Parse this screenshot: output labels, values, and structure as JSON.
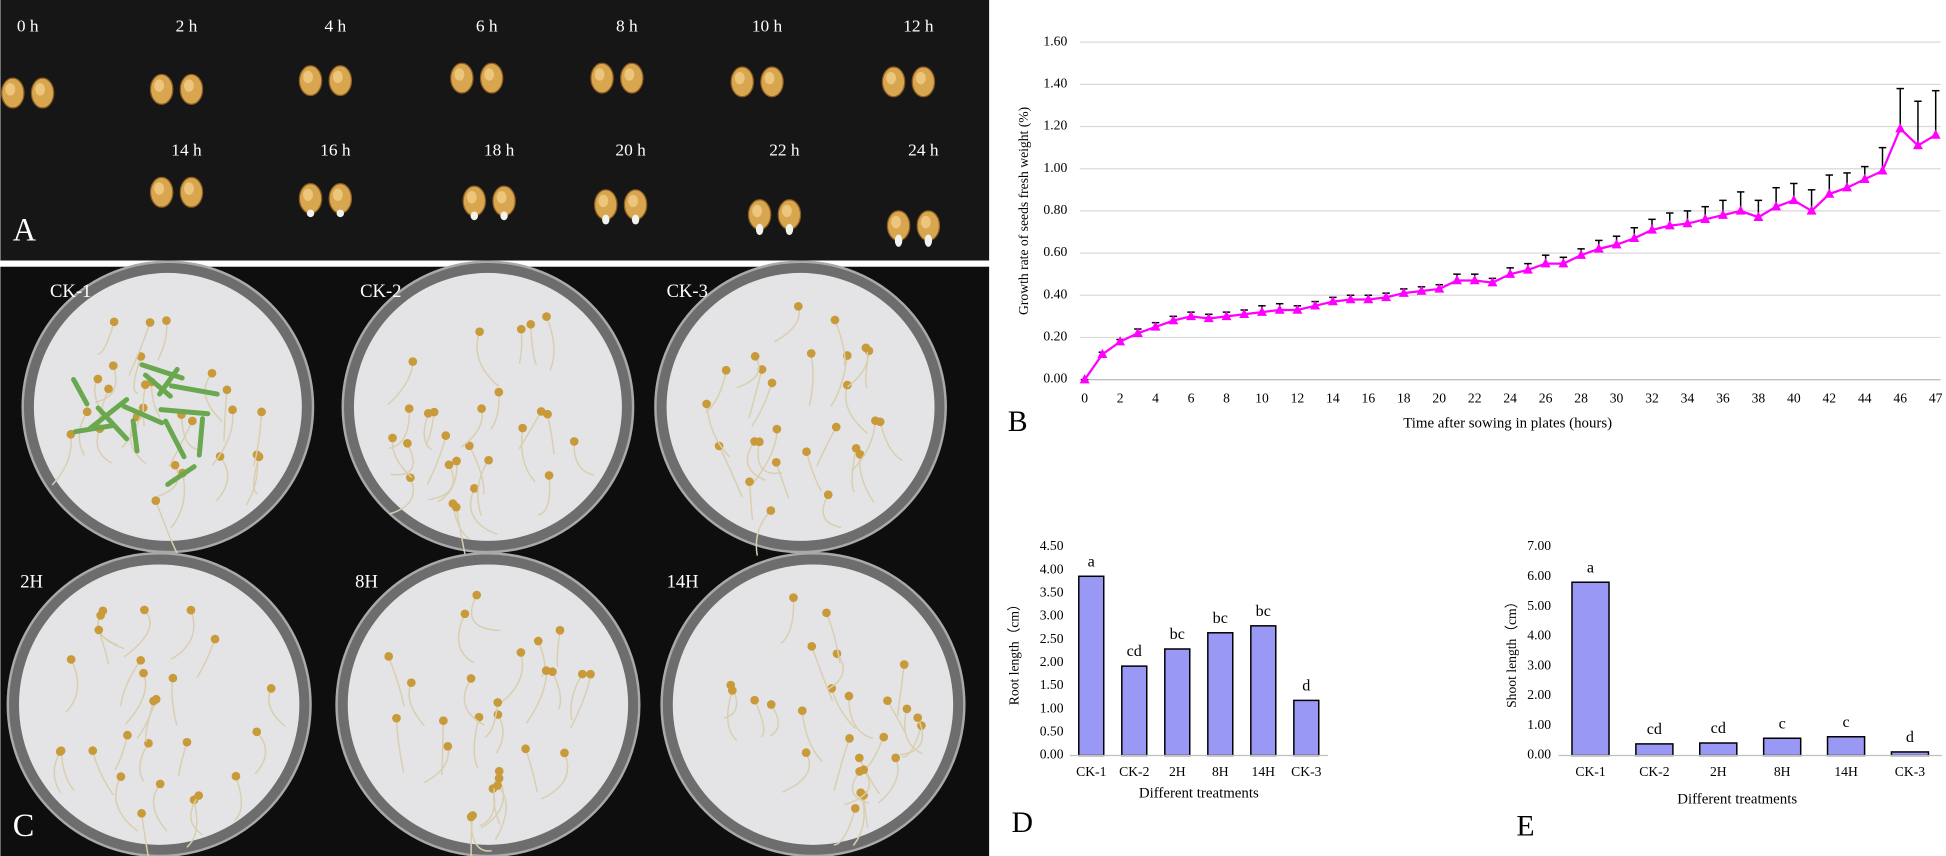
{
  "chart_data": [
    {
      "type": "line",
      "panel_label": "B",
      "x_label": "Time after sowing in plates (hours)",
      "y_label": "Growth rate of seeds fresh weight (%)",
      "categories": [
        "0",
        null,
        "2",
        null,
        "4",
        null,
        "6",
        null,
        "8",
        null,
        "10",
        null,
        "12",
        null,
        "14",
        null,
        "16",
        null,
        "18",
        null,
        "20",
        null,
        "22",
        null,
        "24",
        null,
        "26",
        null,
        "28",
        null,
        "30",
        null,
        "32",
        null,
        "34",
        null,
        "36",
        null,
        "38",
        null,
        "40",
        null,
        "42",
        null,
        "44",
        null,
        "46",
        null,
        "47"
      ],
      "values": [
        0.0,
        0.12,
        0.18,
        0.22,
        0.25,
        0.28,
        0.3,
        0.29,
        0.3,
        0.31,
        0.32,
        0.33,
        0.33,
        0.35,
        0.37,
        0.38,
        0.38,
        0.39,
        0.41,
        0.42,
        0.43,
        0.47,
        0.47,
        0.46,
        0.5,
        0.52,
        0.55,
        0.55,
        0.59,
        0.62,
        0.64,
        0.67,
        0.71,
        0.73,
        0.74,
        0.76,
        0.78,
        0.8,
        0.77,
        0.82,
        0.85,
        0.8,
        0.88,
        0.91,
        0.95,
        0.99,
        1.19,
        1.11,
        1.16
      ],
      "errors": [
        0,
        0.01,
        0.01,
        0.02,
        0.02,
        0.02,
        0.02,
        0.02,
        0.02,
        0.02,
        0.03,
        0.03,
        0.02,
        0.02,
        0.02,
        0.02,
        0.02,
        0.02,
        0.02,
        0.02,
        0.02,
        0.03,
        0.03,
        0.02,
        0.03,
        0.03,
        0.04,
        0.03,
        0.03,
        0.04,
        0.04,
        0.05,
        0.05,
        0.06,
        0.06,
        0.06,
        0.07,
        0.09,
        0.08,
        0.09,
        0.08,
        0.1,
        0.09,
        0.07,
        0.06,
        0.11,
        0.19,
        0.21,
        0.21
      ],
      "color": "#ff00ff",
      "error_color": "#000000",
      "ylim": [
        0,
        1.6
      ],
      "yticks": [
        {
          "value": 0,
          "label": "0.00"
        },
        {
          "value": 0.2,
          "label": "0.20"
        },
        {
          "value": 0.4,
          "label": "0.40"
        },
        {
          "value": 0.6,
          "label": "0.60"
        },
        {
          "value": 0.8,
          "label": "0.80"
        },
        {
          "value": 1,
          "label": "1.00"
        },
        {
          "value": 1.2,
          "label": "1.20"
        },
        {
          "value": 1.4,
          "label": "1.40"
        },
        {
          "value": 1.6,
          "label": "1.60"
        }
      ],
      "grid": true
    },
    {
      "type": "bar",
      "panel_label": "D",
      "x_label": "Different treatments",
      "y_label": "Root length（cm）",
      "categories": [
        "CK-1",
        "CK-2",
        "2H",
        "8H",
        "14H",
        "CK-3"
      ],
      "values": [
        3.87,
        1.93,
        2.3,
        2.65,
        2.8,
        1.19
      ],
      "annotations": [
        "a",
        "cd",
        "bc",
        "bc",
        "bc",
        "d"
      ],
      "color": "#9999f5",
      "ylim": [
        0,
        4.5
      ],
      "yticks": [
        {
          "value": 0,
          "label": "0.00"
        },
        {
          "value": 0.5,
          "label": "0.50"
        },
        {
          "value": 1,
          "label": "1.00"
        },
        {
          "value": 1.5,
          "label": "1.50"
        },
        {
          "value": 2,
          "label": "2.00"
        },
        {
          "value": 2.5,
          "label": "2.50"
        },
        {
          "value": 3,
          "label": "3.00"
        },
        {
          "value": 3.5,
          "label": "3.50"
        },
        {
          "value": 4,
          "label": "4.00"
        },
        {
          "value": 4.5,
          "label": "4.50"
        }
      ],
      "grid": false
    },
    {
      "type": "bar",
      "panel_label": "E",
      "x_label": "Different treatments",
      "y_label": "Shoot length（cm）",
      "categories": [
        "CK-1",
        "CK-2",
        "2H",
        "8H",
        "14H",
        "CK-3"
      ],
      "values": [
        5.82,
        0.39,
        0.42,
        0.58,
        0.63,
        0.12
      ],
      "annotations": [
        "a",
        "cd",
        "cd",
        "c",
        "c",
        "d"
      ],
      "color": "#9999f5",
      "ylim": [
        0,
        7
      ],
      "yticks": [
        {
          "value": 0,
          "label": "0.00"
        },
        {
          "value": 1,
          "label": "1.00"
        },
        {
          "value": 2,
          "label": "2.00"
        },
        {
          "value": 3,
          "label": "3.00"
        },
        {
          "value": 4,
          "label": "4.00"
        },
        {
          "value": 5,
          "label": "5.00"
        },
        {
          "value": 6,
          "label": "6.00"
        },
        {
          "value": 7,
          "label": "7.00"
        }
      ],
      "grid": false
    }
  ],
  "photos": {
    "A": {
      "panel_label": "A",
      "labels": [
        "0 h",
        "2 h",
        "4 h",
        "6 h",
        "8 h",
        "10 h",
        "12 h",
        "14 h",
        "16 h",
        "18 h",
        "20 h",
        "22 h",
        "24 h"
      ]
    },
    "C": {
      "panel_label": "C",
      "labels": [
        "CK-1",
        "CK-2",
        "CK-3",
        "2H",
        "8H",
        "14H"
      ]
    }
  }
}
